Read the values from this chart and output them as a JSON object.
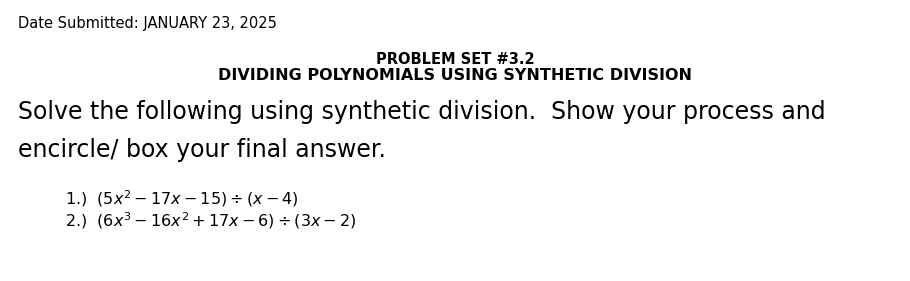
{
  "bg_color": "#ffffff",
  "date_text": "Date Submitted: JANUARY 23, 2025",
  "title1": "PROBLEM SET #3.2",
  "title2": "DIVIDING POLYNOMIALS USING SYNTHETIC DIVISION",
  "body_line1": "Solve the following using synthetic division.  Show your process and",
  "body_line2": "encircle/ box your final answer.",
  "problem1": "1.)  $(5x^2 - 17x - 15) \\div (x - 4)$",
  "problem2": "2.)  $(6x^3 - 16x^2 + 17x - 6) \\div (3x - 2)$",
  "date_fontsize": 10.5,
  "title1_fontsize": 10.5,
  "title2_fontsize": 11.5,
  "body_fontsize": 17,
  "problem_fontsize": 11.5,
  "fig_width": 9.1,
  "fig_height": 2.81,
  "dpi": 100
}
